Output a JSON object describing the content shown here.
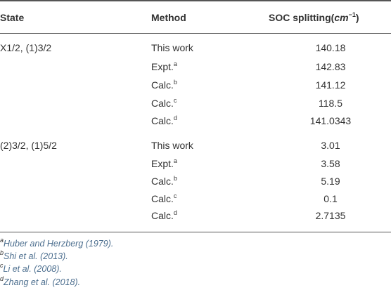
{
  "table": {
    "header": {
      "state": "State",
      "method": "Method",
      "value": {
        "text": "SOC splitting(",
        "unit": "cm",
        "exp": "−1",
        "close": ")"
      }
    },
    "groups": [
      {
        "state": "X1/2, (1)3/2",
        "rows": [
          {
            "method": {
              "text": "This work"
            },
            "value": "140.18"
          },
          {
            "method": {
              "text": "Expt.",
              "sup": "a"
            },
            "value": "142.83"
          },
          {
            "method": {
              "text": "Calc.",
              "sup": "b"
            },
            "value": "141.12"
          },
          {
            "method": {
              "text": "Calc.",
              "sup": "c"
            },
            "value": "118.5"
          },
          {
            "method": {
              "text": "Calc.",
              "sup": "d"
            },
            "value": "141.0343"
          }
        ]
      },
      {
        "state": "(2)3/2, (1)5/2",
        "rows": [
          {
            "method": {
              "text": "This work"
            },
            "value": "3.01"
          },
          {
            "method": {
              "text": "Expt.",
              "sup": "a"
            },
            "value": "3.58"
          },
          {
            "method": {
              "text": "Calc.",
              "sup": "b"
            },
            "value": "5.19"
          },
          {
            "method": {
              "text": "Calc.",
              "sup": "c"
            },
            "value": "0.1"
          },
          {
            "method": {
              "text": "Calc.",
              "sup": "d"
            },
            "value": "2.7135"
          }
        ]
      }
    ]
  },
  "footnotes": [
    {
      "mark": "a",
      "text": "Huber and Herzberg (1979)."
    },
    {
      "mark": "b",
      "text": "Shi et al. (2013)."
    },
    {
      "mark": "c",
      "text": "Li et al. (2008)."
    },
    {
      "mark": "d",
      "text": "Zhang et al. (2018)."
    }
  ]
}
